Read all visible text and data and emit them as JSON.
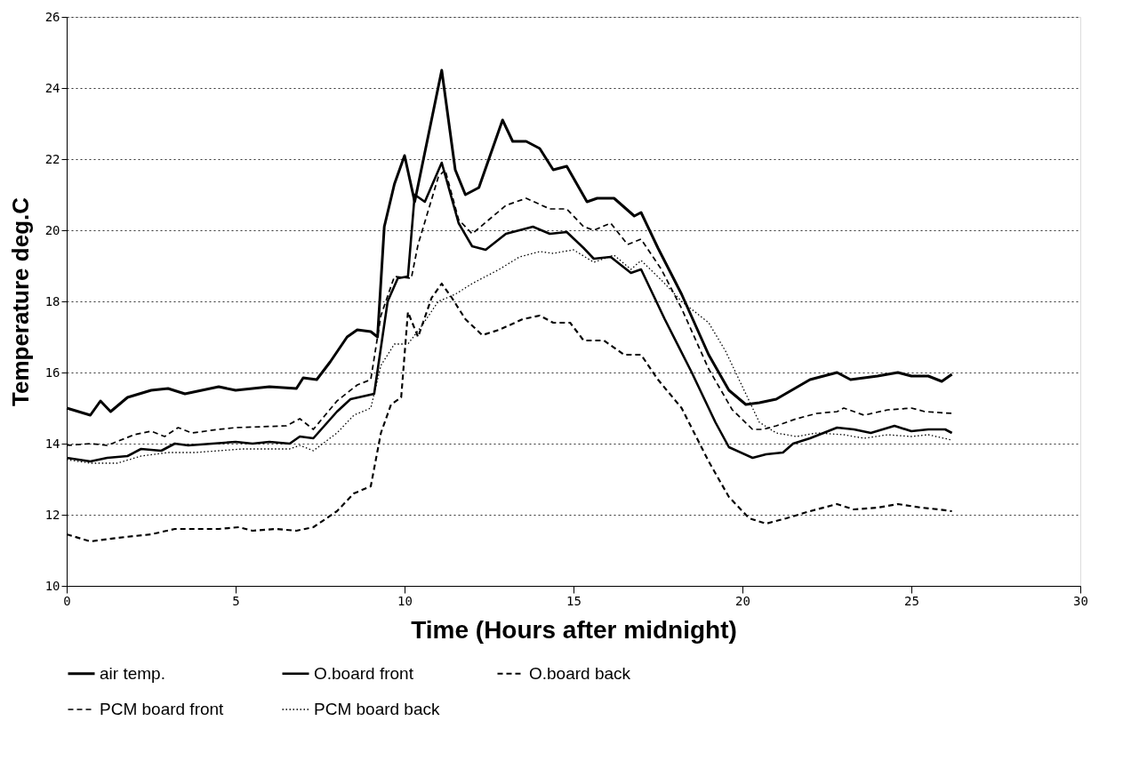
{
  "chart_data": {
    "type": "line",
    "xlabel": "Time (Hours after midnight)",
    "ylabel": "Temperature deg.C",
    "xlim": [
      0,
      30
    ],
    "xticks": [
      0,
      5,
      10,
      15,
      20,
      25,
      30
    ],
    "ylim": [
      10,
      26
    ],
    "yticks": [
      10,
      12,
      14,
      16,
      18,
      20,
      22,
      24,
      26
    ],
    "grid": "y",
    "legend": "bottom",
    "series": [
      {
        "name": "air temp.",
        "color": "#000000",
        "line_style": "solid",
        "x": [
          0,
          0.7,
          1.0,
          1.3,
          1.8,
          2.5,
          3,
          3.5,
          4.5,
          5,
          6,
          6.8,
          7.0,
          7.4,
          7.8,
          8.3,
          8.6,
          9.0,
          9.2,
          9.4,
          9.7,
          10.0,
          10.3,
          11.1,
          11.5,
          11.8,
          12.2,
          12.9,
          13.2,
          13.6,
          14.0,
          14.4,
          14.8,
          15.4,
          15.7,
          16.2,
          16.8,
          17.0,
          17.5,
          18.2,
          19.0,
          19.6,
          20.1,
          20.5,
          21.0,
          22.0,
          22.8,
          23.2,
          24.0,
          24.6,
          25.0,
          25.5,
          25.9,
          26.2
        ],
        "values": [
          15.0,
          14.8,
          15.2,
          14.9,
          15.3,
          15.5,
          15.55,
          15.4,
          15.6,
          15.5,
          15.6,
          15.55,
          15.85,
          15.8,
          16.3,
          17.0,
          17.2,
          17.15,
          17.0,
          20.1,
          21.3,
          22.1,
          20.8,
          24.5,
          21.7,
          21.0,
          21.2,
          23.1,
          22.5,
          22.5,
          22.3,
          21.7,
          21.8,
          20.8,
          20.9,
          20.9,
          20.4,
          20.5,
          19.5,
          18.2,
          16.5,
          15.5,
          15.1,
          15.15,
          15.25,
          15.8,
          16.0,
          15.8,
          15.9,
          16.0,
          15.9,
          15.9,
          15.75,
          15.95
        ]
      },
      {
        "name": "O.board front",
        "color": "#000000",
        "line_style": "solid",
        "x": [
          0,
          0.7,
          1.2,
          1.8,
          2.2,
          2.8,
          3.2,
          3.6,
          5,
          5.5,
          6.0,
          6.6,
          6.9,
          7.3,
          8.0,
          8.4,
          9.1,
          9.5,
          9.8,
          10.1,
          10.3,
          10.6,
          11.1,
          11.6,
          12.0,
          12.4,
          13.0,
          13.8,
          14.3,
          14.8,
          15.3,
          15.6,
          16.1,
          16.7,
          17.0,
          17.7,
          18.5,
          19.2,
          19.6,
          20.3,
          20.7,
          21.2,
          21.5,
          22.0,
          22.8,
          23.3,
          23.8,
          24.5,
          25.0,
          25.5,
          26.0,
          26.2
        ],
        "values": [
          13.6,
          13.5,
          13.6,
          13.65,
          13.85,
          13.8,
          14.0,
          13.95,
          14.05,
          14.0,
          14.05,
          14.0,
          14.2,
          14.15,
          14.9,
          15.25,
          15.4,
          18.0,
          18.65,
          18.7,
          21.0,
          20.8,
          21.9,
          20.2,
          19.55,
          19.45,
          19.9,
          20.1,
          19.9,
          19.95,
          19.5,
          19.2,
          19.25,
          18.8,
          18.9,
          17.5,
          16.0,
          14.6,
          13.9,
          13.6,
          13.7,
          13.75,
          14.0,
          14.15,
          14.45,
          14.4,
          14.3,
          14.5,
          14.35,
          14.4,
          14.4,
          14.3
        ]
      },
      {
        "name": "O.board back",
        "color": "#000000",
        "line_style": "dashed",
        "x": [
          0,
          0.7,
          1.5,
          2.5,
          3.2,
          4.5,
          5.1,
          5.5,
          6.2,
          6.8,
          7.3,
          8.0,
          8.5,
          9.0,
          9.3,
          9.6,
          9.9,
          10.1,
          10.4,
          10.8,
          11.1,
          11.4,
          11.8,
          12.3,
          12.8,
          13.5,
          14.0,
          14.4,
          14.9,
          15.3,
          15.9,
          16.5,
          17.0,
          17.5,
          18.2,
          19.0,
          19.6,
          20.2,
          20.7,
          21.3,
          22.0,
          22.8,
          23.3,
          24.0,
          24.6,
          25.3,
          25.8,
          26.2
        ],
        "values": [
          11.45,
          11.25,
          11.35,
          11.45,
          11.6,
          11.6,
          11.65,
          11.55,
          11.6,
          11.55,
          11.65,
          12.1,
          12.6,
          12.8,
          14.3,
          15.1,
          15.3,
          17.7,
          17.0,
          18.1,
          18.5,
          18.1,
          17.5,
          17.05,
          17.2,
          17.5,
          17.6,
          17.4,
          17.4,
          16.9,
          16.9,
          16.5,
          16.5,
          15.8,
          15.0,
          13.5,
          12.5,
          11.9,
          11.75,
          11.9,
          12.1,
          12.3,
          12.15,
          12.2,
          12.3,
          12.2,
          12.15,
          12.1
        ]
      },
      {
        "name": "PCM board front",
        "color": "#000000",
        "line_style": "dashed",
        "x": [
          0,
          0.7,
          1.2,
          2.0,
          2.5,
          2.9,
          3.3,
          3.7,
          4.5,
          5,
          6.5,
          6.9,
          7.3,
          8.0,
          8.6,
          9.0,
          9.3,
          9.7,
          10.2,
          10.4,
          11.0,
          11.2,
          11.6,
          12.0,
          12.5,
          13.0,
          13.6,
          14.3,
          14.8,
          15.3,
          15.6,
          16.1,
          16.6,
          17.0,
          17.6,
          18.2,
          19.0,
          19.7,
          20.3,
          20.6,
          21.0,
          21.6,
          22.2,
          22.8,
          23.0,
          23.6,
          24.3,
          25.0,
          25.4,
          26.2
        ],
        "values": [
          13.95,
          14.0,
          13.95,
          14.25,
          14.35,
          14.2,
          14.45,
          14.3,
          14.4,
          14.45,
          14.5,
          14.7,
          14.4,
          15.2,
          15.65,
          15.8,
          17.6,
          18.7,
          18.65,
          19.6,
          21.5,
          21.7,
          20.3,
          19.9,
          20.3,
          20.7,
          20.9,
          20.6,
          20.6,
          20.1,
          20.0,
          20.2,
          19.6,
          19.75,
          18.9,
          17.8,
          16.1,
          14.95,
          14.4,
          14.4,
          14.5,
          14.7,
          14.85,
          14.9,
          15.0,
          14.8,
          14.95,
          15.0,
          14.9,
          14.85
        ]
      },
      {
        "name": "PCM board back",
        "color": "#000000",
        "line_style": "dotted",
        "x": [
          0,
          0.7,
          1.5,
          2.2,
          3.0,
          3.8,
          4.5,
          5.2,
          5.8,
          6.6,
          6.9,
          7.3,
          8.0,
          8.5,
          9.0,
          9.3,
          9.7,
          10.1,
          10.5,
          11.0,
          11.5,
          12.0,
          12.8,
          13.4,
          14.0,
          14.4,
          15.0,
          15.6,
          16.2,
          16.7,
          17.0,
          17.6,
          18.2,
          19.0,
          19.5,
          20.0,
          20.5,
          21.0,
          21.6,
          22.2,
          23.0,
          23.6,
          24.3,
          25.0,
          25.5,
          26.2
        ],
        "values": [
          13.55,
          13.45,
          13.45,
          13.65,
          13.75,
          13.75,
          13.8,
          13.85,
          13.85,
          13.85,
          13.95,
          13.8,
          14.3,
          14.8,
          15.0,
          16.2,
          16.8,
          16.8,
          17.3,
          18.0,
          18.2,
          18.5,
          18.9,
          19.25,
          19.4,
          19.35,
          19.45,
          19.1,
          19.3,
          18.9,
          19.15,
          18.6,
          18.0,
          17.4,
          16.6,
          15.6,
          14.6,
          14.3,
          14.2,
          14.3,
          14.25,
          14.15,
          14.25,
          14.2,
          14.25,
          14.1
        ]
      }
    ]
  }
}
